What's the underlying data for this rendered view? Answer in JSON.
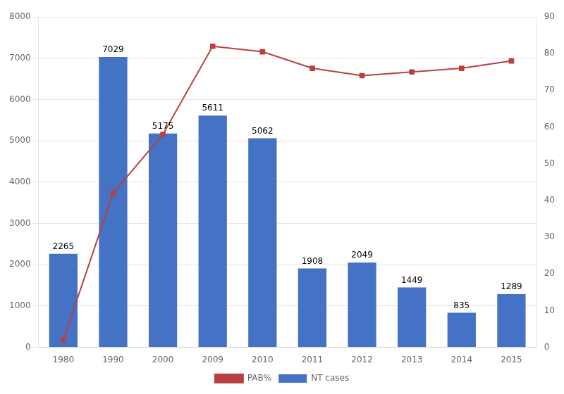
{
  "chart_data": {
    "type": "bar",
    "categories": [
      "1980",
      "1990",
      "2000",
      "2009",
      "2010",
      "2011",
      "2012",
      "2013",
      "2014",
      "2015"
    ],
    "series": [
      {
        "name": "NT cases",
        "type": "bar",
        "color": "#4472C4",
        "data_labels": true,
        "values": [
          2265,
          7029,
          5175,
          5611,
          5062,
          1908,
          2049,
          1449,
          835,
          1289
        ]
      },
      {
        "name": "PAB%",
        "type": "line",
        "color": "#B94040",
        "marker": "square",
        "axis": "y2",
        "values": [
          2.0,
          42.0,
          58.0,
          82.0,
          80.5,
          76.0,
          74.0,
          75.0,
          76.0,
          78.0
        ]
      }
    ],
    "ylim": [
      0,
      8000
    ],
    "yticks": [
      0,
      1000,
      2000,
      3000,
      4000,
      5000,
      6000,
      7000,
      8000
    ],
    "y2lim": [
      0,
      90
    ],
    "y2ticks": [
      0,
      10,
      20,
      30,
      40,
      50,
      60,
      70,
      80,
      90
    ],
    "grid": true,
    "legend": "bottom"
  }
}
